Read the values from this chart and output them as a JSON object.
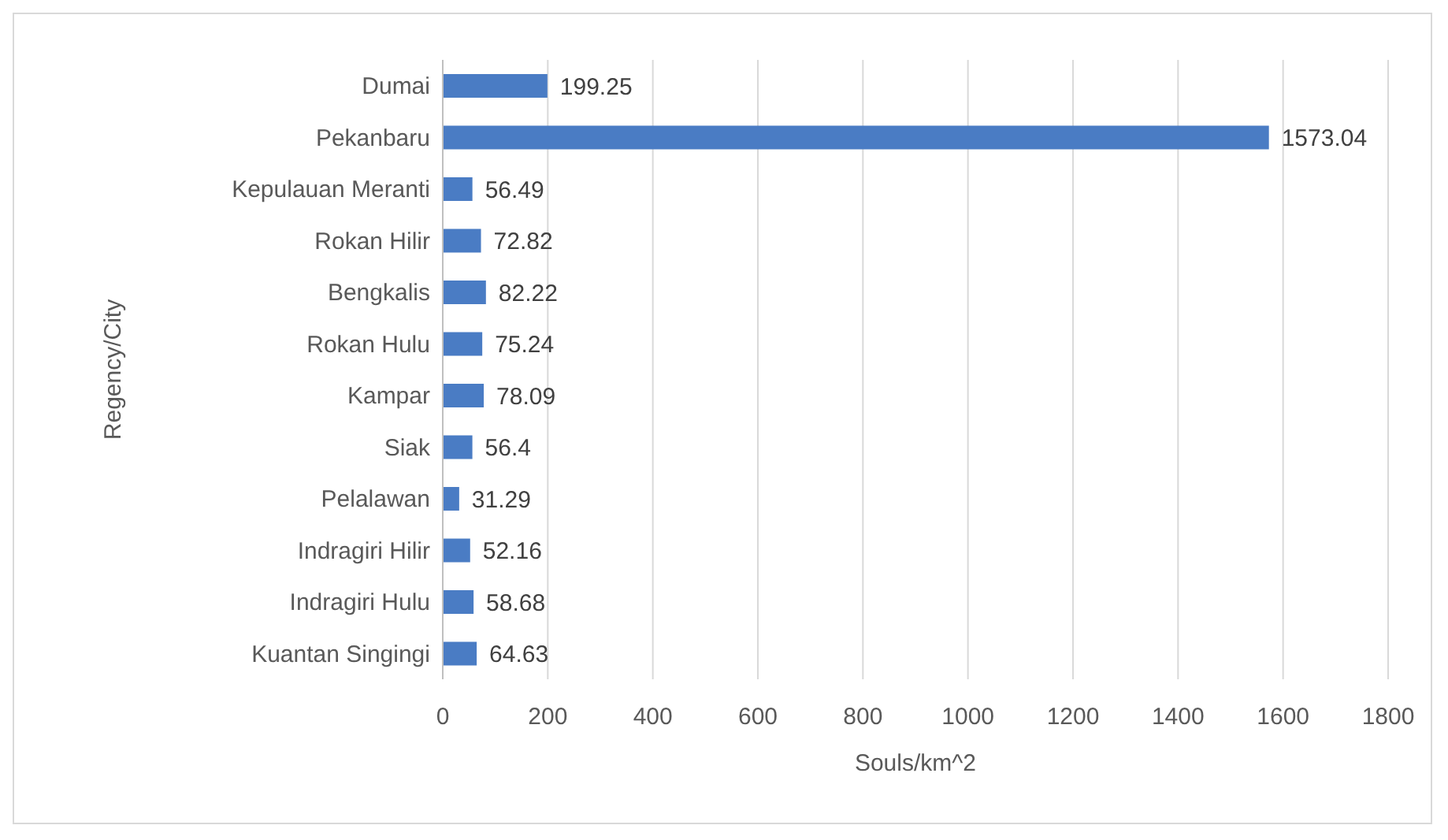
{
  "chart_data": {
    "type": "bar",
    "orientation": "horizontal",
    "xlabel": "Souls/km^2",
    "ylabel": "Regency/City",
    "categories": [
      "Dumai",
      "Pekanbaru",
      "Kepulauan Meranti",
      "Rokan Hilir",
      "Bengkalis",
      "Rokan Hulu",
      "Kampar",
      "Siak",
      "Pelalawan",
      "Indragiri Hilir",
      "Indragiri Hulu",
      "Kuantan Singingi"
    ],
    "values": [
      199.25,
      1573.04,
      56.49,
      72.82,
      82.22,
      75.24,
      78.09,
      56.4,
      31.29,
      52.16,
      58.68,
      64.63
    ],
    "color": "#4a7cc4",
    "xlim": [
      0,
      1800
    ],
    "xticks": [
      0,
      200,
      400,
      600,
      800,
      1000,
      1200,
      1400,
      1600,
      1800
    ],
    "grid": "x",
    "data_labels": true
  }
}
